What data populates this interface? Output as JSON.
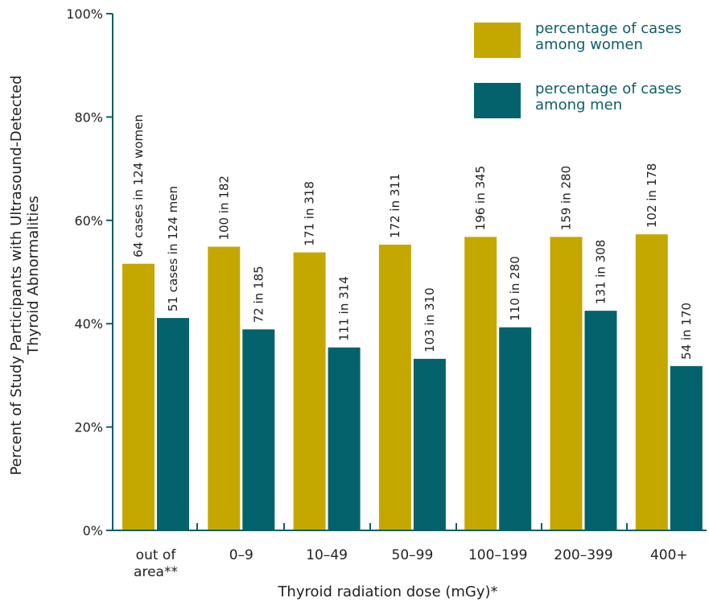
{
  "chart_data": {
    "type": "bar",
    "title": "",
    "xlabel": "Thyroid radiation dose (mGy)*",
    "ylabel_line1": "Percent of Study Participants with Ultrasound-Detected",
    "ylabel_line2": "Thyroid Abnormalities",
    "ylim": [
      0,
      100
    ],
    "yticks": [
      "0%",
      "20%",
      "40%",
      "60%",
      "80%",
      "100%"
    ],
    "ytick_values": [
      0,
      20,
      40,
      60,
      80,
      100
    ],
    "categories": [
      [
        "out of",
        "area**"
      ],
      [
        "0–9"
      ],
      [
        "10–49"
      ],
      [
        "50–99"
      ],
      [
        "100–199"
      ],
      [
        "200–399"
      ],
      [
        "400+"
      ]
    ],
    "series": [
      {
        "name_line1": "percentage of cases",
        "name_line2": "among women",
        "color": "#c4a800",
        "values": [
          51.6,
          54.9,
          53.8,
          55.3,
          56.8,
          56.8,
          57.3
        ],
        "labels": [
          "64 cases in 124 women",
          "100 in 182",
          "171 in 318",
          "172 in 311",
          "196 in 345",
          "159 in 280",
          "102 in 178"
        ]
      },
      {
        "name_line1": "percentage of cases",
        "name_line2": "among men",
        "color": "#03626b",
        "values": [
          41.1,
          38.9,
          35.4,
          33.2,
          39.3,
          42.5,
          31.8
        ],
        "labels": [
          "51 cases in 124 men",
          "72 in 185",
          "111 in 314",
          "103 in 310",
          "110 in 280",
          "131 in 308",
          "54 in 170"
        ]
      }
    ],
    "legend_placement": "top-right",
    "grid": false,
    "colors": {
      "axis": "#0e5e66",
      "women": "#c4a800",
      "men": "#03626b"
    }
  }
}
